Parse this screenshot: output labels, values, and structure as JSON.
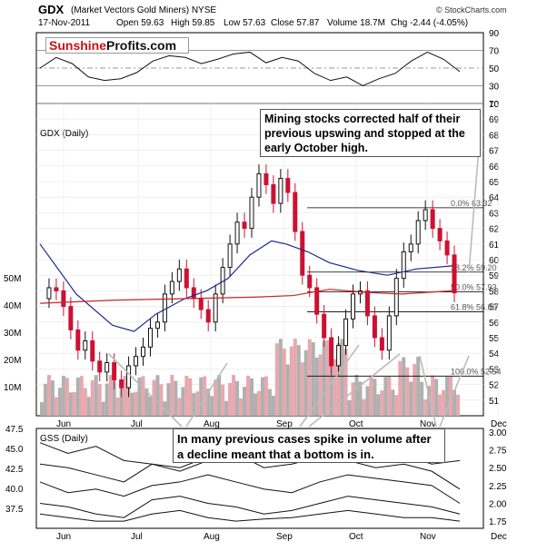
{
  "header": {
    "symbol": "GDX",
    "name": "(Market Vectors Gold Miners) NYSE",
    "date": "17-Nov-2011",
    "open": "Open 59.63",
    "high": "High 59.85",
    "low": "Low 57.63",
    "close": "Close 57.87",
    "volume": "Volume 18.7M",
    "chg": "Chg -2.44 (-4.05%)",
    "credit": "© StockCharts.com"
  },
  "logo": {
    "part1": "Sunshine",
    "part2": "Profits.com"
  },
  "annotations": {
    "top": "Mining stocks corrected half of their previous upswing and stopped at the early October high.",
    "bottom": "In many previous cases spike in volume after a decline meant that a bottom is in."
  },
  "colors": {
    "up": "#111111",
    "down": "#cc1133",
    "ma50": "#1a2a8c",
    "ma200": "#cc2222",
    "volume_up": "#b0b0b0",
    "volume_down": "#e8a8ae",
    "ann": "#b0b0b0",
    "gss": "#111111"
  },
  "chart_data": [
    {
      "type": "line",
      "panel": "RSI",
      "ylim": [
        10,
        90
      ],
      "yticks": [
        10,
        30,
        50,
        70,
        90
      ],
      "x": [
        "2011-05-20",
        "2011-05-27",
        "2011-06-03",
        "2011-06-10",
        "2011-06-17",
        "2011-06-24",
        "2011-07-01",
        "2011-07-08",
        "2011-07-15",
        "2011-07-22",
        "2011-07-29",
        "2011-08-05",
        "2011-08-12",
        "2011-08-19",
        "2011-08-26",
        "2011-09-02",
        "2011-09-09",
        "2011-09-16",
        "2011-09-23",
        "2011-09-30",
        "2011-10-07",
        "2011-10-14",
        "2011-10-21",
        "2011-10-28",
        "2011-11-04",
        "2011-11-11",
        "2011-11-17"
      ],
      "series": [
        {
          "values": [
            50,
            62,
            55,
            40,
            36,
            38,
            45,
            58,
            64,
            62,
            55,
            60,
            66,
            68,
            56,
            62,
            58,
            44,
            36,
            40,
            30,
            38,
            44,
            58,
            68,
            60,
            46
          ]
        }
      ],
      "reference_lines": [
        30,
        50,
        70
      ]
    },
    {
      "type": "candlestick",
      "panel": "GDX (Daily)",
      "title": "GDX (Daily)",
      "ylim": [
        50,
        70
      ],
      "yticks": [
        51,
        52,
        53,
        54,
        55,
        56,
        57,
        58,
        59,
        60,
        61,
        62,
        63,
        64,
        65,
        66,
        67,
        68,
        69,
        70
      ],
      "xticks": [
        "Jun",
        "Jul",
        "Aug",
        "Sep",
        "Oct",
        "Nov",
        "Dec"
      ],
      "fib_levels": [
        {
          "label": "0.0% 63.32",
          "value": 63.32
        },
        {
          "label": "38.2% 59.20",
          "value": 59.2
        },
        {
          "label": "50.0% 57.93",
          "value": 57.93
        },
        {
          "label": "61.8% 56.66",
          "value": 56.66
        },
        {
          "label": "100.0% 52.54",
          "value": 52.54
        }
      ],
      "close_points": [
        [
          0,
          57.5
        ],
        [
          4,
          58.2
        ],
        [
          8,
          58.0
        ],
        [
          12,
          57.0
        ],
        [
          16,
          55.5
        ],
        [
          20,
          54.2
        ],
        [
          24,
          54.8
        ],
        [
          28,
          53.5
        ],
        [
          32,
          52.8
        ],
        [
          36,
          53.4
        ],
        [
          40,
          52.3
        ],
        [
          44,
          51.8
        ],
        [
          48,
          53.2
        ],
        [
          52,
          53.8
        ],
        [
          56,
          54.4
        ],
        [
          60,
          55.6
        ],
        [
          64,
          56.0
        ],
        [
          68,
          57.8
        ],
        [
          72,
          58.6
        ],
        [
          76,
          59.4
        ],
        [
          80,
          58.2
        ],
        [
          84,
          57.5
        ],
        [
          88,
          56.8
        ],
        [
          92,
          56.0
        ],
        [
          96,
          57.8
        ],
        [
          100,
          59.5
        ],
        [
          104,
          61.0
        ],
        [
          108,
          62.4
        ],
        [
          112,
          62.0
        ],
        [
          116,
          64.0
        ],
        [
          120,
          65.5
        ],
        [
          124,
          64.8
        ],
        [
          128,
          63.6
        ],
        [
          132,
          65.2
        ],
        [
          136,
          64.3
        ],
        [
          140,
          61.8
        ],
        [
          144,
          59.0
        ],
        [
          148,
          58.2
        ],
        [
          152,
          56.5
        ],
        [
          156,
          55.0
        ],
        [
          160,
          53.2
        ],
        [
          164,
          54.5
        ],
        [
          168,
          56.2
        ],
        [
          172,
          57.8
        ],
        [
          176,
          58.0
        ],
        [
          180,
          56.4
        ],
        [
          184,
          55.0
        ],
        [
          188,
          54.2
        ],
        [
          192,
          56.4
        ],
        [
          196,
          58.8
        ],
        [
          200,
          60.5
        ],
        [
          204,
          61.0
        ],
        [
          208,
          62.5
        ],
        [
          212,
          63.2
        ],
        [
          216,
          62.0
        ],
        [
          220,
          61.2
        ],
        [
          224,
          60.3
        ],
        [
          228,
          57.87
        ]
      ],
      "moving_averages": [
        {
          "period": 50,
          "values": [
            [
              0,
              61.0
            ],
            [
              20,
              57.8
            ],
            [
              40,
              55.8
            ],
            [
              52,
              55.4
            ],
            [
              64,
              56.5
            ],
            [
              80,
              57.5
            ],
            [
              92,
              58.0
            ],
            [
              104,
              58.8
            ],
            [
              116,
              60.3
            ],
            [
              128,
              61.2
            ],
            [
              136,
              61.0
            ],
            [
              148,
              60.5
            ],
            [
              160,
              59.8
            ],
            [
              176,
              59.3
            ],
            [
              192,
              59.0
            ],
            [
              208,
              59.4
            ],
            [
              228,
              59.6
            ]
          ]
        },
        {
          "period": 200,
          "values": [
            [
              0,
              57.2
            ],
            [
              40,
              57.4
            ],
            [
              80,
              57.5
            ],
            [
              120,
              57.6
            ],
            [
              140,
              57.7
            ],
            [
              160,
              58.1
            ],
            [
              180,
              57.9
            ],
            [
              200,
              57.8
            ],
            [
              228,
              58.0
            ]
          ]
        }
      ],
      "volume_axis": {
        "ticks": [
          "10M",
          "20M",
          "30M",
          "40M",
          "50M"
        ]
      }
    },
    {
      "type": "line",
      "panel": "GSS (Daily)",
      "title": "GSS (Daily)",
      "left_ticks": [
        37.5,
        40.0,
        42.5,
        45.0,
        47.5
      ],
      "right_ticks": [
        1.75,
        2.0,
        2.25,
        2.5,
        2.75,
        3.0
      ],
      "xticks": [
        "Jun",
        "Jul",
        "Aug",
        "Sep",
        "Oct",
        "Nov",
        "Dec"
      ],
      "series": [
        {
          "values": [
            2.85,
            2.7,
            2.8,
            2.6,
            2.55,
            2.5,
            2.65,
            2.75,
            2.7,
            2.8,
            2.85,
            2.7,
            2.72,
            2.68,
            2.55,
            2.6
          ]
        },
        {
          "values": [
            2.55,
            2.5,
            2.4,
            2.3,
            2.55,
            2.45,
            2.6,
            2.7,
            2.5,
            2.55,
            2.65,
            2.6,
            2.5,
            2.55,
            2.45,
            2.2
          ]
        },
        {
          "values": [
            2.3,
            2.15,
            2.2,
            2.1,
            2.25,
            2.3,
            2.4,
            2.3,
            2.2,
            2.15,
            2.3,
            2.4,
            2.35,
            2.3,
            2.25,
            2.0
          ]
        },
        {
          "values": [
            2.0,
            1.95,
            1.85,
            1.8,
            2.05,
            2.1,
            2.0,
            1.95,
            1.85,
            1.9,
            2.0,
            2.1,
            2.05,
            2.0,
            1.95,
            1.85
          ]
        },
        {
          "values": [
            1.85,
            1.8,
            1.75,
            1.75,
            1.85,
            1.9,
            1.8,
            1.75,
            1.78,
            1.8,
            1.85,
            1.9,
            1.85,
            1.8,
            1.8,
            1.75
          ]
        }
      ]
    }
  ]
}
